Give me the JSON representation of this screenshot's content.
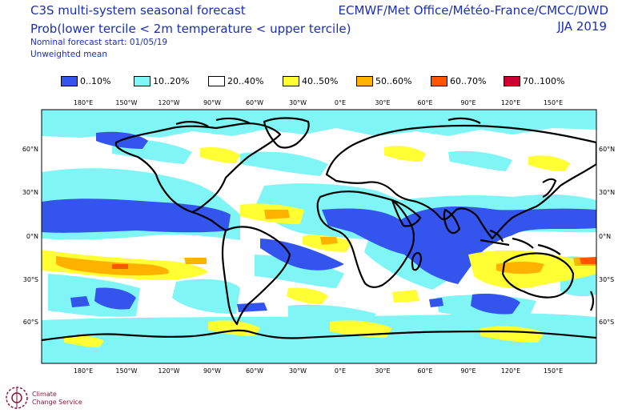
{
  "header": {
    "title": "C3S multi-system seasonal forecast",
    "subtitle": "Prob(lower tercile < 2m temperature < upper tercile)",
    "forecast_start": "Nominal forecast start: 01/05/19",
    "mean_type": "Unweighted mean",
    "producers": "ECMWF/Met Office/Météo-France/CMCC/DWD",
    "season": "JJA 2019"
  },
  "legend": [
    {
      "label": "0..10%",
      "color": "#3355ee"
    },
    {
      "label": "10..20%",
      "color": "#7ff5f5"
    },
    {
      "label": "20..40%",
      "color": "#ffffff"
    },
    {
      "label": "40..50%",
      "color": "#ffff33"
    },
    {
      "label": "50..60%",
      "color": "#ffb300"
    },
    {
      "label": "60..70%",
      "color": "#ff5500"
    },
    {
      "label": "70..100%",
      "color": "#cc0033"
    }
  ],
  "longitude_ticks": [
    "180°E",
    "150°W",
    "120°W",
    "90°W",
    "60°W",
    "30°W",
    "0°E",
    "30°E",
    "60°E",
    "90°E",
    "120°E",
    "150°E"
  ],
  "latitude_ticks": [
    "60°N",
    "30°N",
    "0°N",
    "30°S",
    "60°S"
  ],
  "logo": {
    "line1": "Climate",
    "line2": "Change Service"
  }
}
